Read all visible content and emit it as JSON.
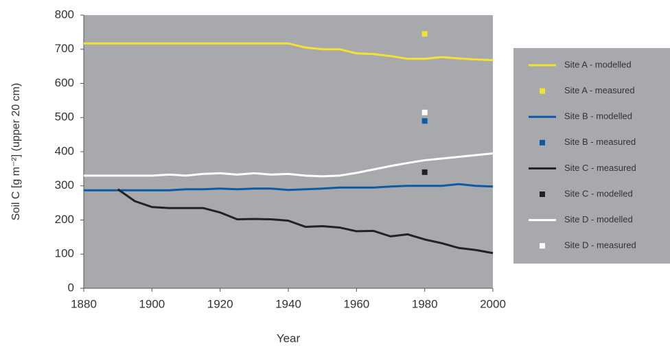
{
  "chart_data": {
    "type": "line",
    "xlabel": "Year",
    "ylabel": "Soil C [g m⁻²] (upper 20 cm)",
    "x": [
      1880,
      1885,
      1890,
      1895,
      1900,
      1905,
      1910,
      1915,
      1920,
      1925,
      1930,
      1935,
      1940,
      1945,
      1950,
      1955,
      1960,
      1965,
      1970,
      1975,
      1980,
      1985,
      1990,
      1995,
      2000
    ],
    "xlim": [
      1880,
      2000
    ],
    "xticks": [
      1880,
      1900,
      1920,
      1940,
      1960,
      1980,
      2000
    ],
    "ylim": [
      0,
      800
    ],
    "yticks": [
      0,
      100,
      200,
      300,
      400,
      500,
      600,
      700,
      800
    ],
    "series": [
      {
        "name": "Site A - modelled",
        "type": "line",
        "color": "#f2e232",
        "values": [
          717,
          717,
          717,
          717,
          717,
          717,
          717,
          717,
          717,
          717,
          717,
          717,
          717,
          705,
          700,
          700,
          688,
          686,
          680,
          672,
          672,
          677,
          673,
          670,
          668
        ]
      },
      {
        "name": "Site A - measured",
        "type": "scatter",
        "color": "#f2e232",
        "x": [
          1980
        ],
        "values": [
          745
        ]
      },
      {
        "name": "Site B - modelled",
        "type": "line",
        "color": "#0b5aa6",
        "values": [
          287,
          287,
          287,
          287,
          287,
          287,
          290,
          290,
          292,
          290,
          292,
          292,
          288,
          290,
          292,
          295,
          295,
          295,
          298,
          300,
          300,
          300,
          305,
          300,
          298
        ]
      },
      {
        "name": "Site B - measured",
        "type": "scatter",
        "color": "#0b5aa6",
        "x": [
          1980
        ],
        "values": [
          490
        ]
      },
      {
        "name": "Site C - measured",
        "type": "line",
        "color": "#222222",
        "values": [
          null,
          null,
          290,
          255,
          238,
          235,
          235,
          235,
          222,
          202,
          203,
          202,
          198,
          180,
          182,
          178,
          167,
          168,
          152,
          158,
          143,
          132,
          118,
          112,
          103
        ]
      },
      {
        "name": "Site C - modelled",
        "type": "scatter",
        "color": "#222222",
        "x": [
          1980
        ],
        "values": [
          340
        ]
      },
      {
        "name": "Site D - modelled",
        "type": "line",
        "color": "#ffffff",
        "values": [
          330,
          330,
          330,
          330,
          330,
          333,
          330,
          335,
          337,
          333,
          337,
          333,
          335,
          330,
          328,
          330,
          338,
          348,
          358,
          367,
          375,
          380,
          385,
          390,
          395
        ]
      },
      {
        "name": "Site D - measured",
        "type": "scatter",
        "color": "#ffffff",
        "x": [
          1980
        ],
        "values": [
          515
        ]
      }
    ]
  }
}
